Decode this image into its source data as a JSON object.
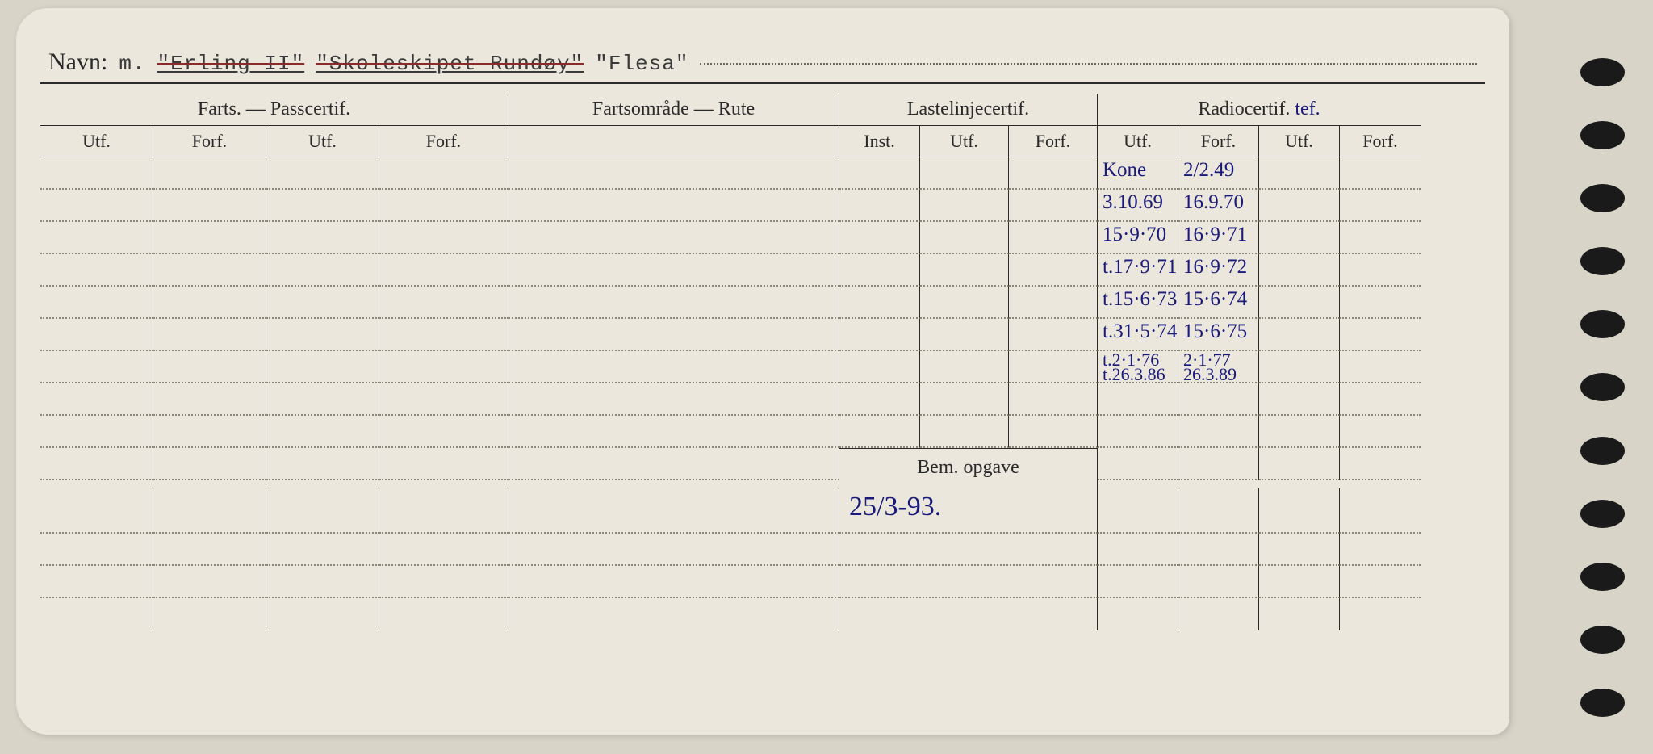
{
  "card": {
    "navn_label": "Navn:",
    "name_prefix": "m.",
    "name1": "\"Erling II\"",
    "name2": "\"Skoleskipet Rundøy\"",
    "name3": "\"Flesa\""
  },
  "sections": {
    "farts_pass": "Farts. — Passcertif.",
    "fartsomrade": "Fartsområde — Rute",
    "lastelinje": "Lastelinjecertif.",
    "radio": "Radiocertif.",
    "radio_annot": "tef."
  },
  "cols": {
    "utf": "Utf.",
    "forf": "Forf.",
    "inst": "Inst."
  },
  "radio_rows": [
    {
      "utf": "Kone",
      "forf": "2/2.49"
    },
    {
      "utf": "3.10.69",
      "forf": "16.9.70"
    },
    {
      "utf": "15·9·70",
      "forf": "16·9·71"
    },
    {
      "utf": "t.17·9·71",
      "forf": "16·9·72"
    },
    {
      "utf": "t.15·6·73",
      "forf": "15·6·74"
    },
    {
      "utf": "t.31·5·74",
      "forf": "15·6·75"
    },
    {
      "utf": "t.2·1·76\nt.26.3.86",
      "forf": "2·1·77\n26.3.89"
    }
  ],
  "bem": {
    "label": "Bem. opgave",
    "value": "25/3-93."
  },
  "layout": {
    "data_rows": 7,
    "blank_rows_after_data": 2,
    "post_bem_rows": 3,
    "binder_holes": 11
  },
  "colors": {
    "page_bg": "#d8d4c8",
    "card_bg": "#ebe7dc",
    "ink_print": "#2a2a2a",
    "ink_pen": "#1a1a7a",
    "strike": "#8b2a2a",
    "dotted": "#888878"
  }
}
